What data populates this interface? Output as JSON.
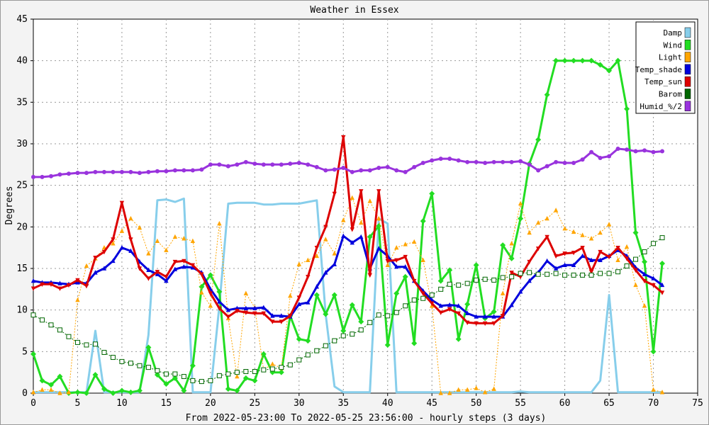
{
  "chart_data": {
    "type": "line",
    "title": "Weather in Essex",
    "xlabel": "From 2022-05-23:00 To 2022-05-25 23:56:00 - hourly steps (3 days)",
    "ylabel": "Degrees",
    "xlim": [
      0,
      75
    ],
    "ylim": [
      0,
      45
    ],
    "x_ticks": [
      0,
      5,
      10,
      15,
      20,
      25,
      30,
      35,
      40,
      45,
      50,
      55,
      60,
      65,
      70,
      75
    ],
    "y_ticks": [
      0,
      5,
      10,
      15,
      20,
      25,
      30,
      35,
      40,
      45
    ],
    "grid": true,
    "legend_position": "top-right",
    "series": [
      {
        "name": "Damp",
        "color": "#87ceeb",
        "dash": false,
        "marker": "none",
        "width": 3,
        "values": [
          0.1,
          0.1,
          0.1,
          0.1,
          0.1,
          0.1,
          0.1,
          7.5,
          0.1,
          0.1,
          0.1,
          0.1,
          0.1,
          7.0,
          23.2,
          23.3,
          23.0,
          23.4,
          0.1,
          0.1,
          0.1,
          10.5,
          22.8,
          22.9,
          22.9,
          22.9,
          22.7,
          22.7,
          22.8,
          22.8,
          22.8,
          23.0,
          23.2,
          9.5,
          0.8,
          0.1,
          0.1,
          0.1,
          0.1,
          21.0,
          20.4,
          0.1,
          0.1,
          0.1,
          0.1,
          0.1,
          0.1,
          0.1,
          0.1,
          0.1,
          0.1,
          0.1,
          0.1,
          0.1,
          0.1,
          0.2,
          0.1,
          0.1,
          0.1,
          0.1,
          0.1,
          0.1,
          0.1,
          0.1,
          1.5,
          11.8,
          0.1,
          0.1,
          0.1,
          0.1,
          0.1,
          0.1
        ]
      },
      {
        "name": "Wind",
        "color": "#22dd22",
        "dash": false,
        "marker": "diamond",
        "width": 3,
        "values": [
          4.7,
          1.5,
          1.0,
          2.0,
          0.0,
          0.1,
          0.0,
          2.2,
          0.5,
          0.0,
          0.3,
          0.1,
          0.3,
          5.5,
          2.2,
          1.1,
          1.8,
          0.3,
          3.3,
          12.8,
          14.2,
          12.2,
          0.5,
          0.3,
          1.8,
          1.5,
          4.7,
          2.5,
          2.5,
          9.3,
          6.5,
          6.3,
          11.8,
          9.5,
          11.8,
          7.5,
          10.6,
          8.6,
          18.8,
          20.1,
          5.8,
          12.0,
          14.0,
          6.0,
          20.7,
          24.0,
          13.5,
          14.8,
          6.5,
          10.7,
          15.4,
          9.0,
          9.8,
          17.8,
          16.2,
          21.0,
          27.6,
          30.5,
          35.9,
          40.0,
          40.0,
          40.0,
          40.0,
          40.0,
          39.5,
          38.8,
          40.0,
          34.2,
          19.3,
          15.8,
          5.0,
          15.6
        ]
      },
      {
        "name": "Light",
        "color": "#ffa500",
        "dash": true,
        "marker": "triangle",
        "width": 1,
        "values": [
          0.1,
          0.4,
          0.4,
          0.0,
          0.1,
          11.2,
          15.3,
          16.2,
          17.5,
          18.0,
          19.5,
          21.0,
          19.9,
          16.8,
          18.3,
          17.2,
          18.8,
          18.6,
          18.3,
          12.1,
          10.5,
          20.4,
          9.0,
          2.0,
          12.0,
          10.3,
          2.8,
          3.5,
          3.0,
          11.7,
          15.5,
          16.0,
          16.5,
          18.5,
          16.8,
          20.8,
          23.5,
          20.5,
          23.1,
          21.0,
          15.4,
          17.5,
          17.9,
          18.2,
          16.0,
          10.5,
          0.0,
          0.0,
          0.4,
          0.4,
          0.6,
          0.1,
          0.5,
          12.0,
          18.0,
          22.8,
          19.3,
          20.5,
          21.0,
          22.0,
          19.8,
          19.4,
          19.0,
          18.6,
          19.3,
          20.3,
          16.0,
          17.6,
          13.0,
          10.5,
          0.4,
          0.1
        ]
      },
      {
        "name": "Temp_shade",
        "color": "#0000dd",
        "dash": false,
        "marker": "triangle",
        "width": 3,
        "values": [
          13.5,
          13.3,
          13.3,
          13.2,
          13.1,
          13.3,
          13.2,
          14.5,
          15.0,
          15.9,
          17.5,
          17.1,
          15.8,
          14.8,
          14.3,
          13.5,
          14.9,
          15.2,
          15.1,
          14.5,
          12.5,
          11.0,
          10.0,
          10.2,
          10.2,
          10.2,
          10.3,
          9.3,
          9.3,
          9.2,
          10.7,
          10.9,
          12.8,
          14.5,
          15.5,
          18.9,
          18.1,
          18.8,
          15.0,
          17.4,
          16.5,
          15.2,
          15.2,
          13.5,
          12.3,
          11.2,
          10.5,
          10.6,
          10.5,
          9.6,
          9.2,
          9.2,
          9.2,
          9.2,
          10.6,
          12.2,
          13.5,
          14.5,
          15.9,
          15.0,
          15.4,
          15.4,
          16.5,
          16.0,
          16.0,
          16.5,
          17.2,
          16.5,
          15.1,
          14.3,
          13.8,
          13.0
        ]
      },
      {
        "name": "Temp_sun",
        "color": "#dd0000",
        "dash": false,
        "marker": "triangle-down",
        "width": 3,
        "values": [
          12.6,
          13.1,
          13.1,
          12.6,
          13.0,
          13.6,
          12.9,
          16.3,
          17.0,
          18.5,
          22.9,
          18.5,
          15.0,
          13.8,
          14.6,
          14.0,
          15.8,
          15.9,
          15.4,
          14.3,
          12.0,
          10.2,
          9.2,
          9.9,
          9.7,
          9.6,
          9.6,
          8.6,
          8.6,
          9.3,
          11.5,
          14.0,
          17.5,
          20.0,
          24.0,
          30.8,
          19.7,
          24.3,
          14.2,
          24.3,
          15.9,
          16.0,
          16.4,
          13.5,
          12.0,
          10.8,
          9.7,
          10.1,
          9.6,
          8.5,
          8.4,
          8.4,
          8.4,
          9.3,
          14.5,
          14.0,
          15.8,
          17.4,
          18.8,
          16.5,
          16.8,
          16.9,
          17.5,
          14.6,
          17.0,
          16.4,
          17.5,
          16.2,
          14.8,
          13.5,
          13.0,
          12.1
        ]
      },
      {
        "name": "Barom",
        "color": "#006600",
        "dash": true,
        "marker": "square",
        "width": 1,
        "values": [
          9.4,
          8.8,
          8.2,
          7.6,
          6.8,
          6.1,
          5.8,
          5.9,
          4.9,
          4.3,
          3.8,
          3.6,
          3.3,
          3.1,
          2.7,
          2.3,
          2.3,
          2.0,
          1.5,
          1.4,
          1.5,
          2.1,
          2.3,
          2.5,
          2.6,
          2.6,
          2.8,
          2.9,
          3.1,
          3.4,
          4.0,
          4.6,
          5.1,
          5.7,
          6.3,
          6.9,
          7.1,
          7.6,
          8.5,
          9.4,
          9.3,
          9.7,
          10.5,
          11.2,
          11.4,
          11.8,
          12.5,
          13.1,
          13.0,
          13.2,
          13.6,
          13.7,
          13.6,
          13.9,
          14.0,
          14.4,
          14.5,
          14.3,
          14.3,
          14.4,
          14.2,
          14.2,
          14.2,
          14.2,
          14.4,
          14.4,
          14.6,
          15.3,
          16.1,
          17.0,
          18.0,
          18.7
        ]
      },
      {
        "name": "Humid_%/2",
        "color": "#9933dd",
        "dash": false,
        "marker": "circle",
        "width": 3,
        "values": [
          26.0,
          26.0,
          26.1,
          26.3,
          26.4,
          26.5,
          26.5,
          26.6,
          26.6,
          26.6,
          26.6,
          26.6,
          26.5,
          26.6,
          26.7,
          26.7,
          26.8,
          26.8,
          26.8,
          26.9,
          27.5,
          27.5,
          27.3,
          27.5,
          27.8,
          27.6,
          27.5,
          27.5,
          27.5,
          27.6,
          27.7,
          27.5,
          27.2,
          26.8,
          26.9,
          27.1,
          26.6,
          26.8,
          26.8,
          27.1,
          27.2,
          26.8,
          26.6,
          27.2,
          27.7,
          28.0,
          28.2,
          28.2,
          28.0,
          27.8,
          27.8,
          27.7,
          27.8,
          27.8,
          27.8,
          27.9,
          27.5,
          26.8,
          27.3,
          27.8,
          27.7,
          27.7,
          28.1,
          29.0,
          28.3,
          28.5,
          29.4,
          29.3,
          29.1,
          29.2,
          29.0,
          29.1
        ]
      }
    ]
  }
}
